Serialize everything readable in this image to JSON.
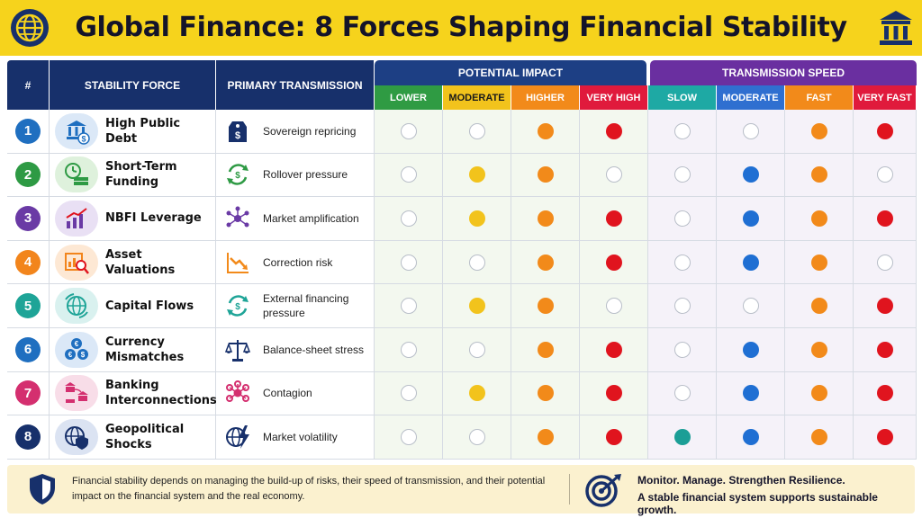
{
  "title": "Global Finance: 8 Forces Shaping Financial Stability",
  "header_icons": {
    "left": "globe-icon",
    "right": "bank-icon"
  },
  "columns": {
    "number": "#",
    "force": "STABILITY FORCE",
    "transmission": "PRIMARY TRANSMISSION",
    "impact_group": "POTENTIAL IMPACT",
    "speed_group": "TRANSMISSION SPEED",
    "impact_levels": [
      "LOWER",
      "MODERATE",
      "HIGHER",
      "VERY HIGH"
    ],
    "speed_levels": [
      "SLOW",
      "MODERATE",
      "FAST",
      "VERY FAST"
    ]
  },
  "colors": {
    "impact_levels": [
      "#2f9b43",
      "#f2c31c",
      "#f28a1a",
      "#e01a3c"
    ],
    "speed_levels": [
      "#1ea9a4",
      "#2f6fd0",
      "#f28a1a",
      "#e01a3c"
    ],
    "badges": [
      "#1f6fc0",
      "#2e9a44",
      "#6a3aa5",
      "#f2851c",
      "#1ea497",
      "#1f6fc0",
      "#d42f6f",
      "#17306b"
    ],
    "dot_moderate_impact": "#f2c31c",
    "dot_higher": "#f28a1a",
    "dot_very_high": "#e0141e",
    "dot_slow": "#1b9e96",
    "dot_moderate_speed": "#1f6fd3"
  },
  "rows": [
    {
      "num": "1",
      "force": "High Public Debt",
      "force_icon": "bank-dollar-icon",
      "transmission": "Sovereign repricing",
      "transmission_icon": "price-tag-icon",
      "impact": 4,
      "speed": 4
    },
    {
      "num": "2",
      "force": "Short-Term Funding",
      "force_icon": "clock-cash-icon",
      "transmission": "Rollover pressure",
      "transmission_icon": "refresh-dollar-icon",
      "impact": 3,
      "speed": 3
    },
    {
      "num": "3",
      "force": "NBFI Leverage",
      "force_icon": "bar-chart-icon",
      "transmission": "Market amplification",
      "transmission_icon": "network-icon",
      "impact": 4,
      "speed": 4
    },
    {
      "num": "4",
      "force": "Asset Valuations",
      "force_icon": "magnifier-chart-icon",
      "transmission": "Correction risk",
      "transmission_icon": "down-trend-icon",
      "impact": 4,
      "speed": 3
    },
    {
      "num": "5",
      "force": "Capital Flows",
      "force_icon": "globe-arrows-icon",
      "transmission": "External financing pressure",
      "transmission_icon": "exchange-arrows-icon",
      "impact": 3,
      "speed": 4
    },
    {
      "num": "6",
      "force": "Currency Mismatches",
      "force_icon": "currency-coins-icon",
      "transmission": "Balance-sheet stress",
      "transmission_icon": "scales-icon",
      "impact": 4,
      "speed": 4
    },
    {
      "num": "7",
      "force": "Banking Interconnections",
      "force_icon": "linked-banks-icon",
      "transmission": "Contagion",
      "transmission_icon": "contagion-network-icon",
      "impact": 4,
      "speed": 4
    },
    {
      "num": "8",
      "force": "Geopolitical Shocks",
      "force_icon": "globe-shield-icon",
      "transmission": "Market volatility",
      "transmission_icon": "globe-lightning-icon",
      "impact": 4,
      "speed": 4
    }
  ],
  "footer": {
    "text": "Financial stability depends on managing the build-up of risks, their speed of transmission, and their potential impact on the financial system and the real economy.",
    "line1": "Monitor. Manage. Strengthen Resilience.",
    "line2": "A stable financial system supports sustainable growth."
  }
}
